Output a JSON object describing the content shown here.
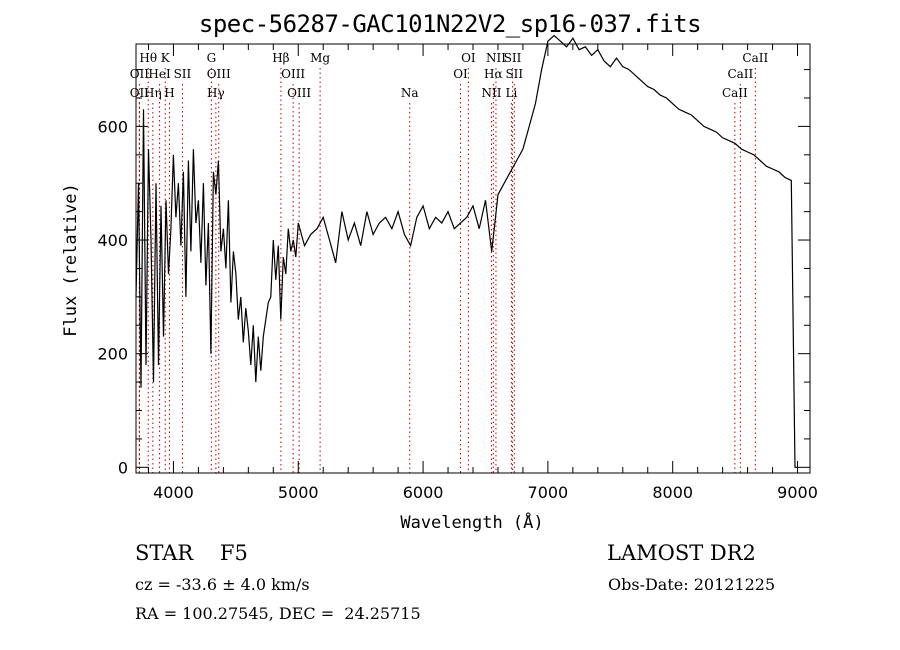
{
  "chart_data": {
    "type": "line",
    "title": "spec-56287-GAC101N22V2_sp16-037.fits",
    "xlabel": "Wavelength (Å)",
    "ylabel": "Flux (relative)",
    "xlim": [
      3700,
      9100
    ],
    "ylim": [
      -10,
      745
    ],
    "x_ticks": [
      4000,
      5000,
      6000,
      7000,
      8000,
      9000
    ],
    "y_ticks": [
      0,
      200,
      400,
      600
    ],
    "line_color": "#000000",
    "marker_color": "#c00000",
    "spectrum": {
      "x": [
        3700,
        3720,
        3740,
        3760,
        3780,
        3800,
        3820,
        3840,
        3860,
        3880,
        3900,
        3920,
        3940,
        3960,
        3980,
        4000,
        4020,
        4040,
        4060,
        4080,
        4100,
        4120,
        4140,
        4160,
        4180,
        4200,
        4220,
        4240,
        4260,
        4280,
        4300,
        4320,
        4340,
        4360,
        4380,
        4400,
        4420,
        4440,
        4460,
        4480,
        4500,
        4520,
        4540,
        4560,
        4580,
        4600,
        4620,
        4640,
        4660,
        4680,
        4700,
        4720,
        4740,
        4760,
        4780,
        4800,
        4820,
        4840,
        4860,
        4880,
        4900,
        4920,
        4940,
        4960,
        4980,
        5000,
        5050,
        5100,
        5150,
        5200,
        5250,
        5300,
        5350,
        5400,
        5450,
        5500,
        5550,
        5600,
        5650,
        5700,
        5750,
        5800,
        5850,
        5900,
        5950,
        6000,
        6050,
        6100,
        6150,
        6200,
        6250,
        6300,
        6350,
        6400,
        6450,
        6500,
        6550,
        6580,
        6600,
        6650,
        6700,
        6750,
        6800,
        6850,
        6900,
        6950,
        7000,
        7050,
        7100,
        7150,
        7200,
        7250,
        7300,
        7350,
        7400,
        7450,
        7500,
        7550,
        7600,
        7650,
        7700,
        7750,
        7800,
        7850,
        7900,
        7950,
        8000,
        8050,
        8100,
        8150,
        8200,
        8250,
        8300,
        8350,
        8400,
        8450,
        8500,
        8550,
        8600,
        8650,
        8700,
        8750,
        8800,
        8850,
        8900,
        8950,
        8980,
        9000
      ],
      "y": [
        300,
        500,
        140,
        630,
        180,
        560,
        400,
        150,
        500,
        180,
        460,
        230,
        470,
        340,
        420,
        550,
        440,
        500,
        390,
        520,
        300,
        540,
        380,
        560,
        430,
        470,
        360,
        500,
        320,
        430,
        200,
        520,
        480,
        540,
        380,
        420,
        350,
        470,
        290,
        380,
        340,
        260,
        300,
        220,
        280,
        240,
        180,
        250,
        150,
        230,
        170,
        230,
        260,
        290,
        300,
        400,
        330,
        390,
        260,
        370,
        340,
        420,
        380,
        400,
        370,
        430,
        390,
        410,
        420,
        440,
        400,
        360,
        450,
        400,
        430,
        390,
        450,
        410,
        430,
        440,
        420,
        450,
        410,
        390,
        440,
        460,
        420,
        440,
        430,
        450,
        420,
        430,
        440,
        460,
        420,
        470,
        380,
        440,
        480,
        500,
        520,
        540,
        560,
        600,
        640,
        700,
        750,
        760,
        750,
        740,
        755,
        735,
        740,
        725,
        735,
        715,
        705,
        720,
        705,
        700,
        690,
        680,
        670,
        665,
        655,
        650,
        640,
        630,
        625,
        620,
        610,
        600,
        595,
        590,
        580,
        575,
        570,
        560,
        555,
        550,
        540,
        530,
        525,
        520,
        510,
        505,
        0,
        0
      ]
    },
    "lines": [
      {
        "label": "Hθ",
        "x": 3798,
        "row": 1
      },
      {
        "label": "K",
        "x": 3934,
        "row": 1
      },
      {
        "label": "G",
        "x": 4304,
        "row": 1
      },
      {
        "label": "Hβ",
        "x": 4861,
        "row": 1
      },
      {
        "label": "Mg",
        "x": 5175,
        "row": 1
      },
      {
        "label": "OI",
        "x": 6363,
        "row": 1
      },
      {
        "label": "NII",
        "x": 6584,
        "row": 1
      },
      {
        "label": "SII",
        "x": 6717,
        "row": 1
      },
      {
        "label": "CaII",
        "x": 8662,
        "row": 1
      },
      {
        "label": "OII",
        "x": 3727,
        "row": 2
      },
      {
        "label": "HeI",
        "x": 3889,
        "row": 2
      },
      {
        "label": "SII",
        "x": 4072,
        "row": 2
      },
      {
        "label": "OIII",
        "x": 4363,
        "row": 2
      },
      {
        "label": "OIII",
        "x": 4959,
        "row": 2
      },
      {
        "label": "OI",
        "x": 6300,
        "row": 2
      },
      {
        "label": "Hα",
        "x": 6563,
        "row": 2
      },
      {
        "label": "SII",
        "x": 6731,
        "row": 2
      },
      {
        "label": "CaII",
        "x": 8542,
        "row": 2
      },
      {
        "label": "OII",
        "x": 3727,
        "row": 3
      },
      {
        "label": "Hη",
        "x": 3835,
        "row": 3
      },
      {
        "label": "H",
        "x": 3968,
        "row": 3
      },
      {
        "label": "Hγ",
        "x": 4340,
        "row": 3
      },
      {
        "label": "OIII",
        "x": 5007,
        "row": 3
      },
      {
        "label": "Na",
        "x": 5893,
        "row": 3
      },
      {
        "label": "NII",
        "x": 6548,
        "row": 3
      },
      {
        "label": "Li",
        "x": 6708,
        "row": 3
      },
      {
        "label": "CaII",
        "x": 8498,
        "row": 3
      }
    ]
  },
  "info": {
    "obj_class": "STAR    F5",
    "survey": "LAMOST DR2",
    "cz": "cz = -33.6 ± 4.0 km/s",
    "obs_date": "Obs-Date: 20121225",
    "radec": "RA = 100.27545, DEC =  24.25715"
  }
}
